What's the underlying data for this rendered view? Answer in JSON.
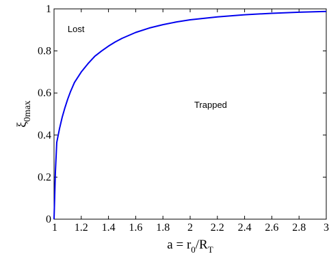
{
  "chart_data": {
    "type": "line",
    "title": "",
    "xlabel": "a = r0/RT",
    "xlabel_parts": {
      "base": "a = r",
      "sub1": "0",
      "mid": "/R",
      "sub2": "T"
    },
    "ylabel": "ξ0max",
    "ylabel_parts": {
      "base": "ξ",
      "sub": "0max"
    },
    "xlim": [
      1,
      3
    ],
    "ylim": [
      0,
      1
    ],
    "xticks": [
      1,
      1.2,
      1.4,
      1.6,
      1.8,
      2,
      2.2,
      2.4,
      2.6,
      2.8,
      3
    ],
    "xtick_labels": [
      "1",
      "1.2",
      "1.4",
      "1.6",
      "1.8",
      "2",
      "2.2",
      "2.4",
      "2.6",
      "2.8",
      "3"
    ],
    "yticks": [
      0,
      0.2,
      0.4,
      0.6,
      0.8,
      1
    ],
    "ytick_labels": [
      "0",
      "0.2",
      "0.4",
      "0.6",
      "0.8",
      "1"
    ],
    "grid": false,
    "series": [
      {
        "color": "#0000ee",
        "x": [
          1.0,
          1.01,
          1.02,
          1.04,
          1.06,
          1.08,
          1.1,
          1.12,
          1.15,
          1.2,
          1.25,
          1.3,
          1.35,
          1.4,
          1.45,
          1.5,
          1.6,
          1.7,
          1.8,
          1.9,
          2.0,
          2.2,
          2.4,
          2.6,
          2.8,
          3.0
        ],
        "y": [
          0.0,
          0.225,
          0.365,
          0.43,
          0.485,
          0.53,
          0.57,
          0.605,
          0.65,
          0.7,
          0.74,
          0.775,
          0.8,
          0.823,
          0.843,
          0.86,
          0.888,
          0.909,
          0.925,
          0.938,
          0.948,
          0.962,
          0.972,
          0.979,
          0.984,
          0.988
        ]
      }
    ],
    "annotations": [
      {
        "text": "Lost",
        "x": 1.1,
        "y": 0.89
      },
      {
        "text": "Trapped",
        "x": 2.03,
        "y": 0.53
      }
    ]
  }
}
